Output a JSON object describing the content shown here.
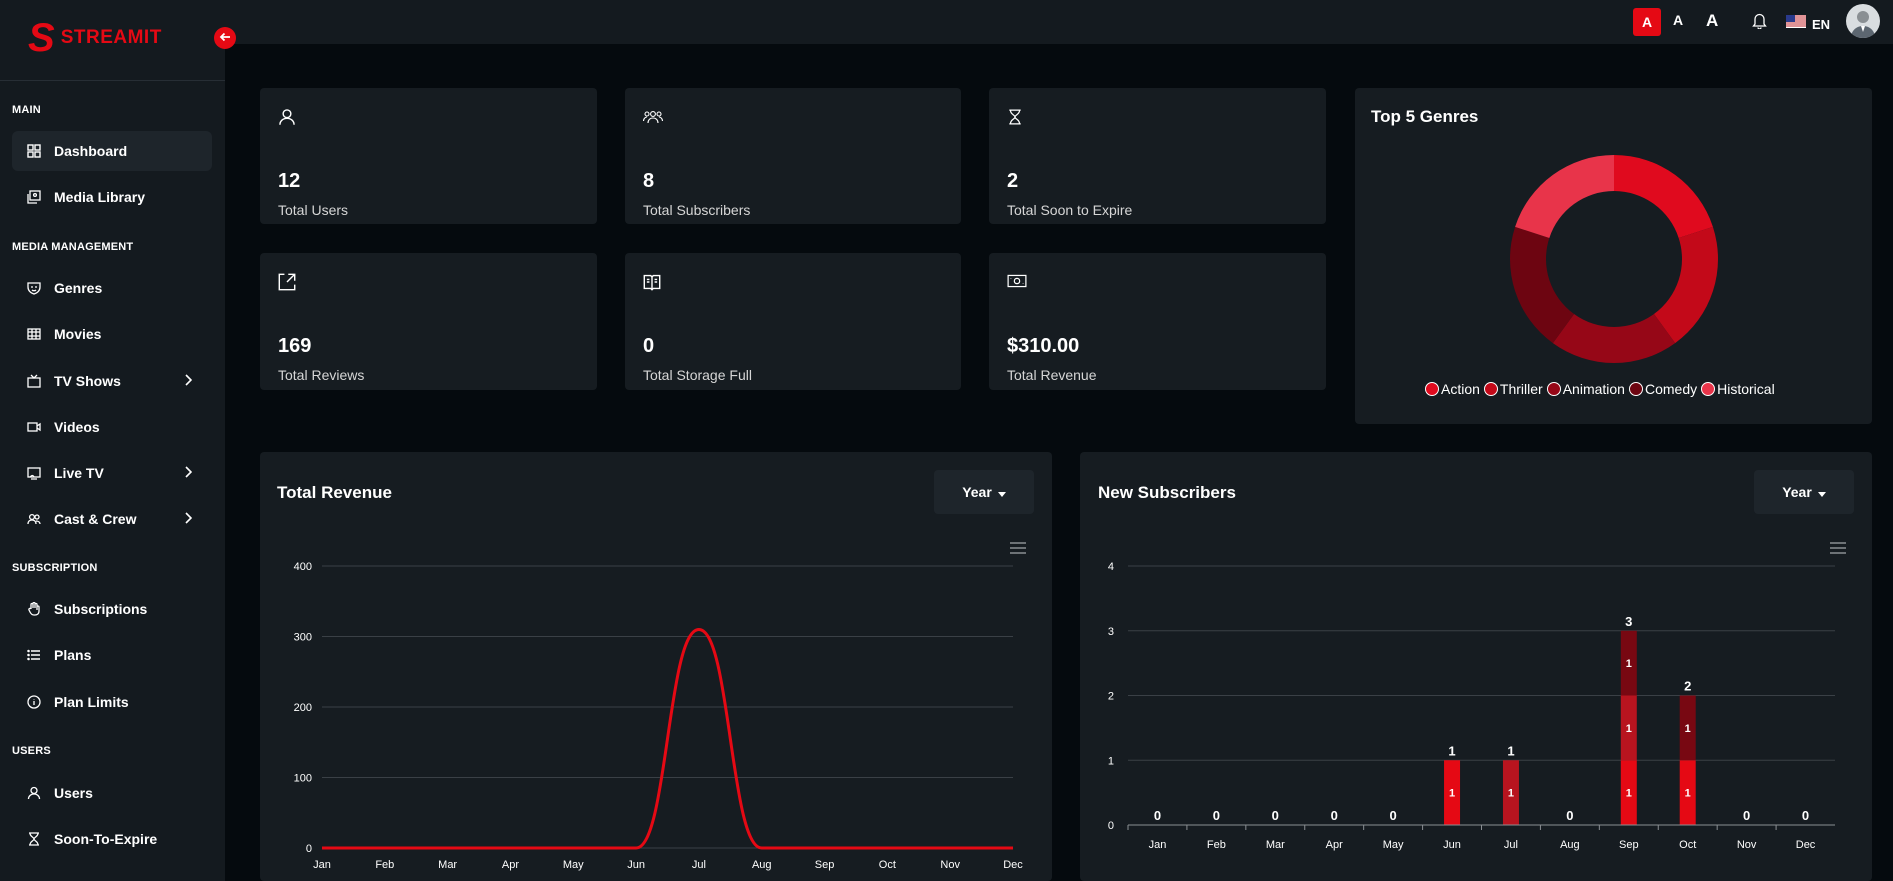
{
  "brand": {
    "logo_letter": "S",
    "name": "STREAMIT",
    "accent": "#e50914"
  },
  "sidebar": {
    "sections": [
      {
        "label": "MAIN",
        "items": [
          {
            "label": "Dashboard",
            "icon": "dashboard-icon",
            "active": true
          },
          {
            "label": "Media Library",
            "icon": "media-library-icon"
          }
        ]
      },
      {
        "label": "MEDIA MANAGEMENT",
        "items": [
          {
            "label": "Genres",
            "icon": "genres-icon"
          },
          {
            "label": "Movies",
            "icon": "movies-icon"
          },
          {
            "label": "TV Shows",
            "icon": "tv-icon",
            "expandable": true
          },
          {
            "label": "Videos",
            "icon": "video-icon"
          },
          {
            "label": "Live TV",
            "icon": "live-tv-icon",
            "expandable": true
          },
          {
            "label": "Cast & Crew",
            "icon": "cast-crew-icon",
            "expandable": true
          }
        ]
      },
      {
        "label": "SUBSCRIPTION",
        "items": [
          {
            "label": "Subscriptions",
            "icon": "hand-icon"
          },
          {
            "label": "Plans",
            "icon": "list-icon"
          },
          {
            "label": "Plan Limits",
            "icon": "info-icon"
          }
        ]
      },
      {
        "label": "USERS",
        "items": [
          {
            "label": "Users",
            "icon": "user-icon"
          },
          {
            "label": "Soon-To-Expire",
            "icon": "hourglass-icon"
          }
        ]
      }
    ]
  },
  "topbar": {
    "font_size_options": [
      "A",
      "A",
      "A"
    ],
    "language": "EN"
  },
  "stats": [
    {
      "value": "12",
      "label": "Total Users",
      "icon": "user-icon"
    },
    {
      "value": "8",
      "label": "Total Subscribers",
      "icon": "users-group-icon"
    },
    {
      "value": "2",
      "label": "Total Soon to Expire",
      "icon": "hourglass-icon"
    },
    {
      "value": "169",
      "label": "Total Reviews",
      "icon": "review-icon"
    },
    {
      "value": "0",
      "label": "Total Storage Full",
      "icon": "storage-icon"
    },
    {
      "value": "$310.00",
      "label": "Total Revenue",
      "icon": "money-icon"
    }
  ],
  "genres_card": {
    "title": "Top 5 Genres"
  },
  "revenue_card": {
    "title": "Total Revenue",
    "filter_label": "Year"
  },
  "subscribers_card": {
    "title": "New Subscribers",
    "filter_label": "Year"
  },
  "chart_data": [
    {
      "type": "pie",
      "title": "Top 5 Genres",
      "donut": true,
      "categories": [
        "Action",
        "Thriller",
        "Animation",
        "Comedy",
        "Historical"
      ],
      "values": [
        20,
        20,
        20,
        20,
        20
      ],
      "colors": [
        "#e00a1e",
        "#c30919",
        "#960717",
        "#6d0511",
        "#e8344a"
      ],
      "legend": "bottom"
    },
    {
      "type": "line",
      "title": "Total Revenue",
      "categories": [
        "Jan",
        "Feb",
        "Mar",
        "Apr",
        "May",
        "Jun",
        "Jul",
        "Aug",
        "Sep",
        "Oct",
        "Nov",
        "Dec"
      ],
      "values": [
        0,
        0,
        0,
        0,
        0,
        0,
        310,
        0,
        0,
        0,
        0,
        0
      ],
      "ylim": [
        0,
        400
      ],
      "yticks": [
        0,
        100,
        200,
        300,
        400
      ],
      "color": "#e50914",
      "grid": true
    },
    {
      "type": "bar",
      "title": "New Subscribers",
      "stacked": true,
      "categories": [
        "Jan",
        "Feb",
        "Mar",
        "Apr",
        "May",
        "Jun",
        "Jul",
        "Aug",
        "Sep",
        "Oct",
        "Nov",
        "Dec"
      ],
      "totals": [
        0,
        0,
        0,
        0,
        0,
        1,
        1,
        0,
        3,
        2,
        0,
        0
      ],
      "series": [
        {
          "values": [
            0,
            0,
            0,
            0,
            0,
            1,
            0,
            0,
            1,
            1,
            0,
            0
          ],
          "color": "#e50914"
        },
        {
          "values": [
            0,
            0,
            0,
            0,
            0,
            0,
            1,
            0,
            1,
            0,
            0,
            0
          ],
          "color": "#b8141f"
        },
        {
          "values": [
            0,
            0,
            0,
            0,
            0,
            0,
            0,
            0,
            1,
            1,
            0,
            0
          ],
          "color": "#780812"
        }
      ],
      "ylim": [
        0,
        4
      ],
      "yticks": [
        0,
        1,
        2,
        3,
        4
      ],
      "grid": true
    }
  ]
}
